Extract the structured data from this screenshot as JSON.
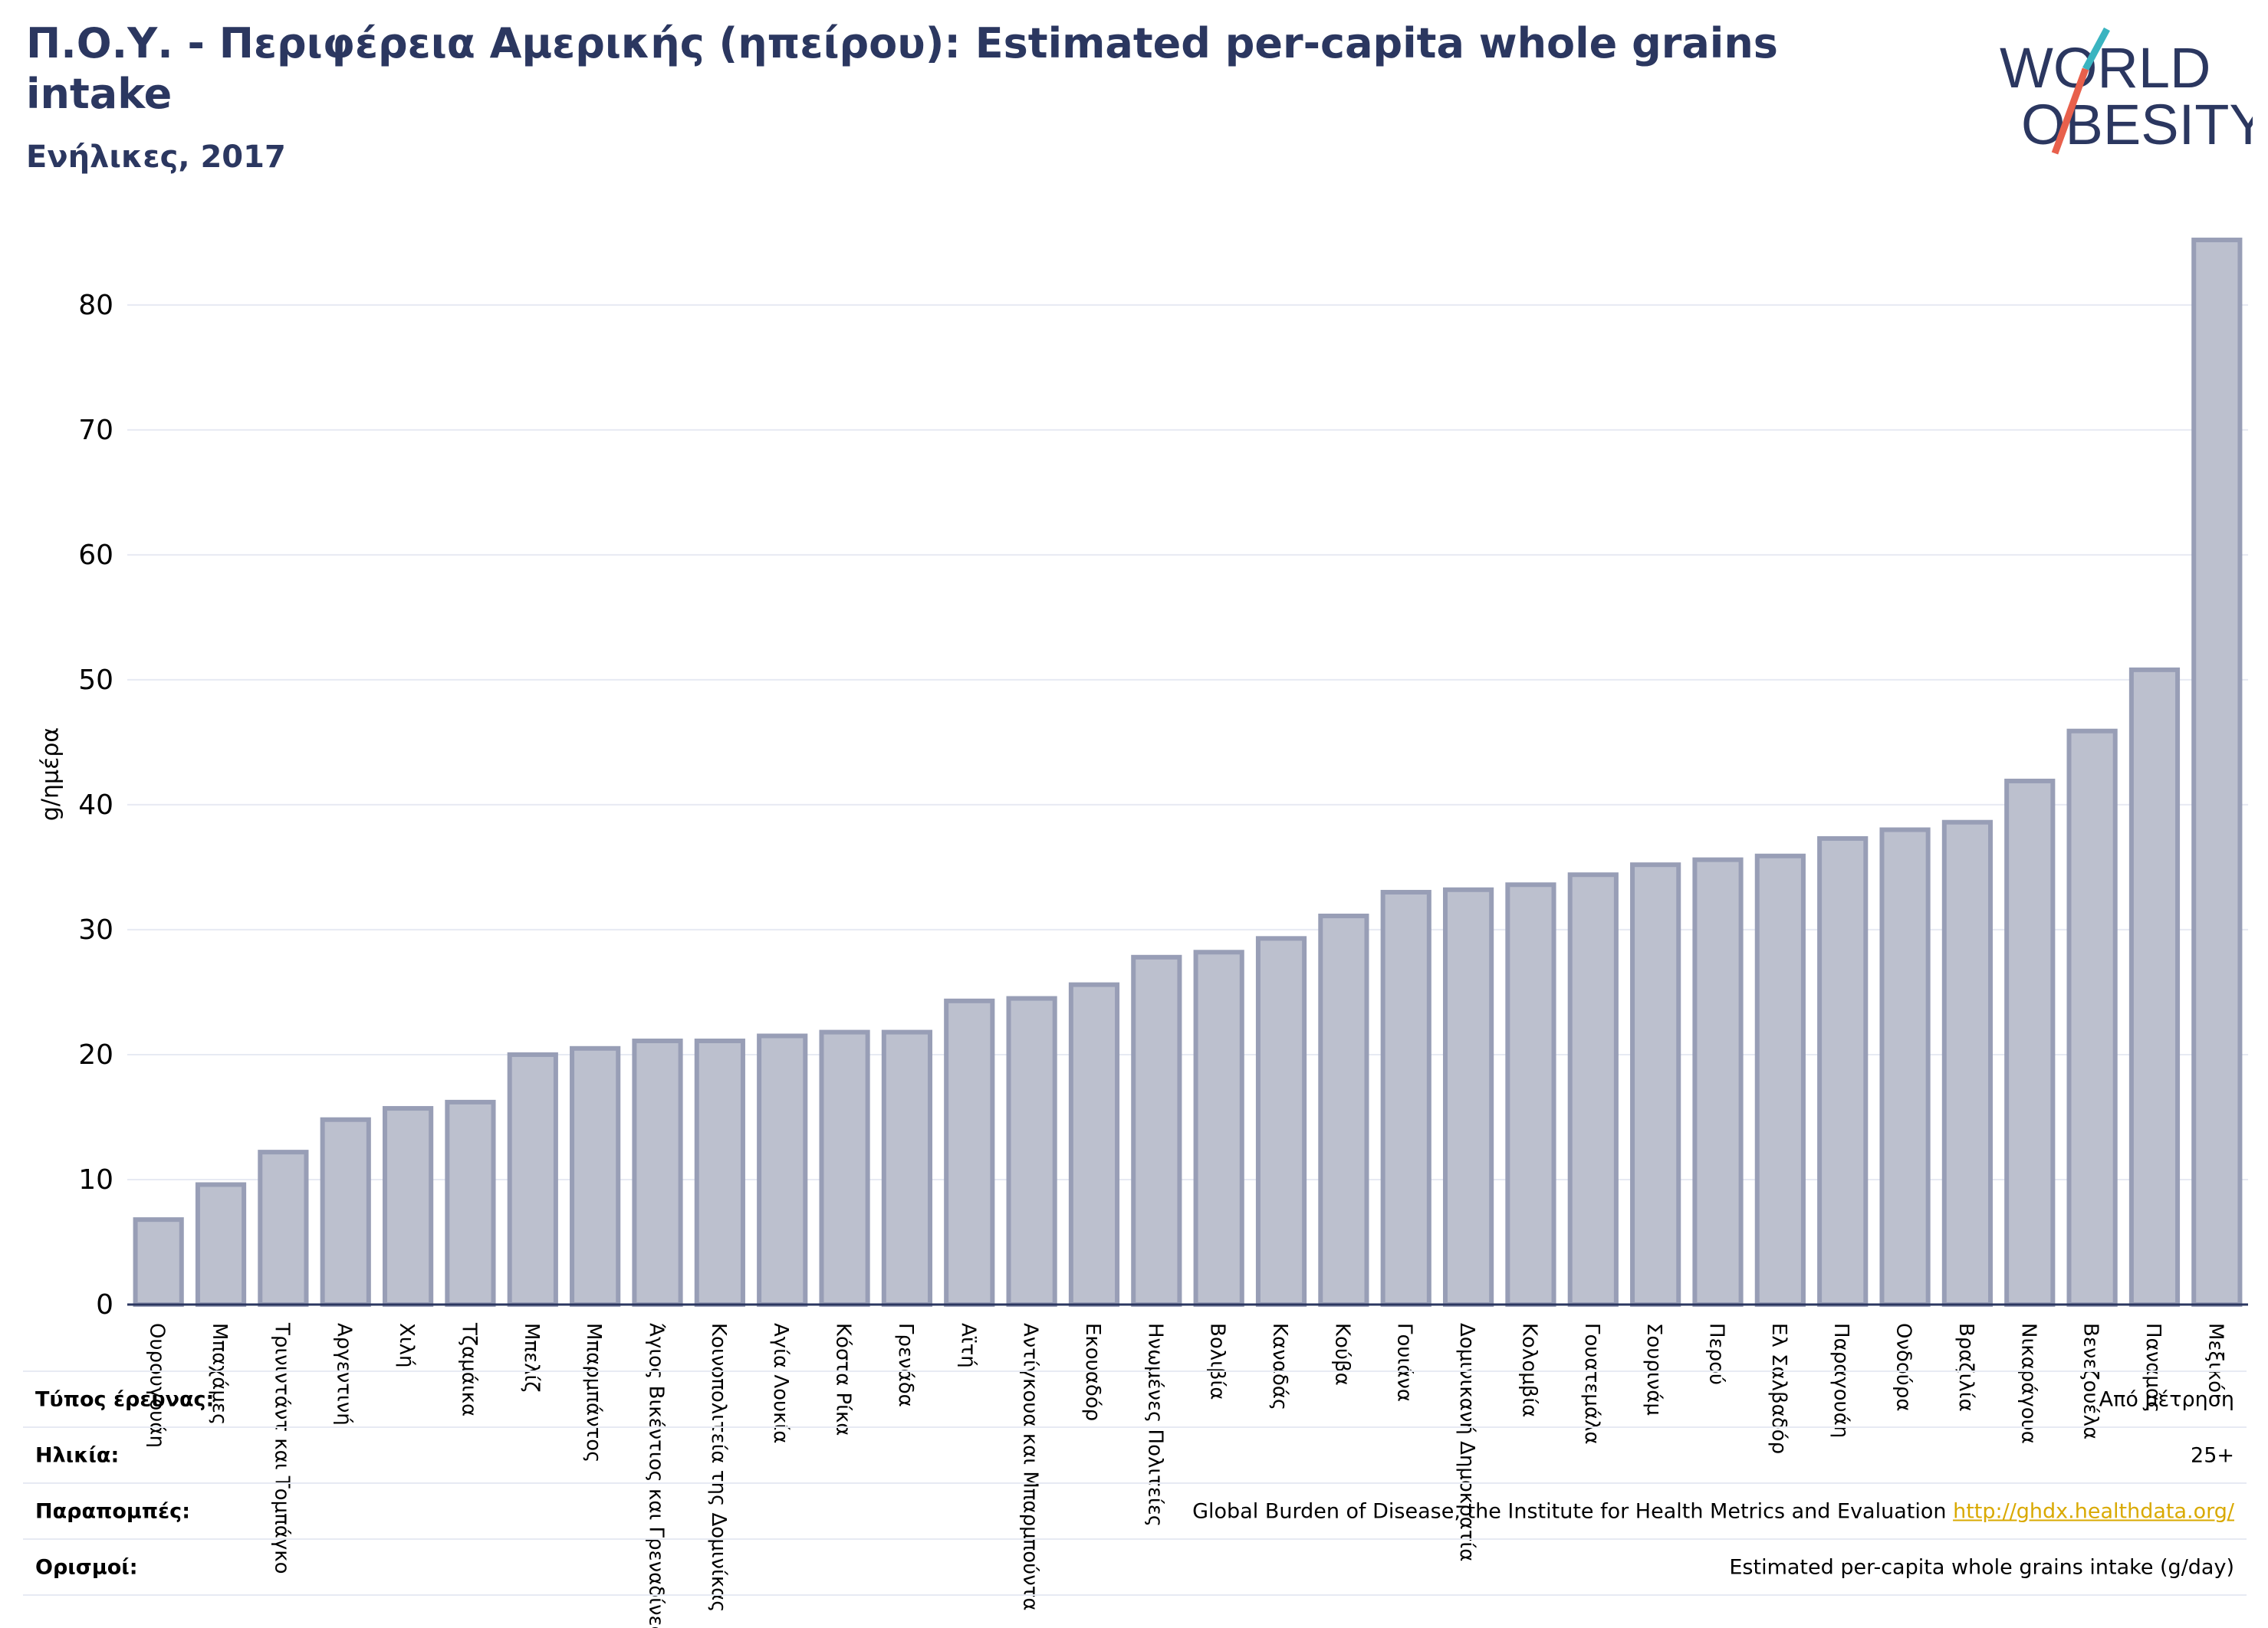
{
  "title": "Π.Ο.Υ. - Περιφέρεια Αμερικής (ηπείρου): Estimated per-capita whole grains intake",
  "subtitle": "Ενήλικες, 2017",
  "logo": {
    "line1": "WORLD",
    "line2": "OBESITY",
    "text_color": "#2b3760",
    "slash_top_color": "#3ab4c0",
    "slash_bottom_color": "#e8604c"
  },
  "colors": {
    "bar_fill": "#bcc0ce",
    "bar_stroke": "#989eb6",
    "grid": "#e7eaf3",
    "axis": "#2b3760"
  },
  "chart_data": {
    "type": "bar",
    "ylabel": "g/ημέρα",
    "xlabel": "",
    "ylim": [
      0,
      86
    ],
    "yticks": [
      0,
      10,
      20,
      30,
      40,
      50,
      60,
      70,
      80
    ],
    "grid": true,
    "categories": [
      "Ουρουγουάη",
      "Μπαχάμες",
      "Τρινιντάντ και Τομπάγκο",
      "Αργεντινή",
      "Χιλή",
      "Τζαμάικα",
      "Μπελίζ",
      "Μπαρμπάντος",
      "Άγιος Βικέντιος και Γρεναδίνες",
      "Κοινοπολιτεία της Δομινίκας",
      "Αγία Λουκία",
      "Κόστα Ρίκα",
      "Γρενάδα",
      "Αϊτή",
      "Αντίγκουα και Μπαρμπούντα",
      "Εκουαδόρ",
      "Ηνωμένες Πολιτείες",
      "Βολιβία",
      "Καναδάς",
      "Κούβα",
      "Γουιάνα",
      "Δομινικανή Δημοκρατία",
      "Κολομβία",
      "Γουατεμάλα",
      "Σουρινάμ",
      "Περού",
      "Ελ Σαλβαδόρ",
      "Παραγουάη",
      "Ονδούρα",
      "Βραζιλία",
      "Νικαράγουα",
      "Βενεζουέλα",
      "Παναμάς",
      "Μεξικό"
    ],
    "values": [
      6.8,
      9.6,
      12.2,
      14.8,
      15.7,
      16.2,
      20.0,
      20.5,
      21.1,
      21.1,
      21.5,
      21.8,
      21.8,
      24.3,
      24.5,
      25.6,
      27.8,
      28.2,
      29.3,
      31.1,
      33.0,
      33.2,
      33.6,
      34.4,
      35.2,
      35.6,
      35.9,
      37.3,
      38.0,
      38.6,
      41.9,
      45.9,
      50.8,
      85.2
    ]
  },
  "footer": {
    "rows": [
      {
        "label": "Τύπος έρευνας:",
        "value": "Από μέτρηση"
      },
      {
        "label": "Ηλικία:",
        "value": "25+"
      },
      {
        "label": "Παραπομπές:",
        "value": "Global Burden of Disease, the Institute for Health Metrics and Evaluation",
        "link": "http://ghdx.healthdata.org/"
      },
      {
        "label": "Ορισμοί:",
        "value": "Estimated per-capita whole grains intake (g/day)"
      }
    ]
  }
}
